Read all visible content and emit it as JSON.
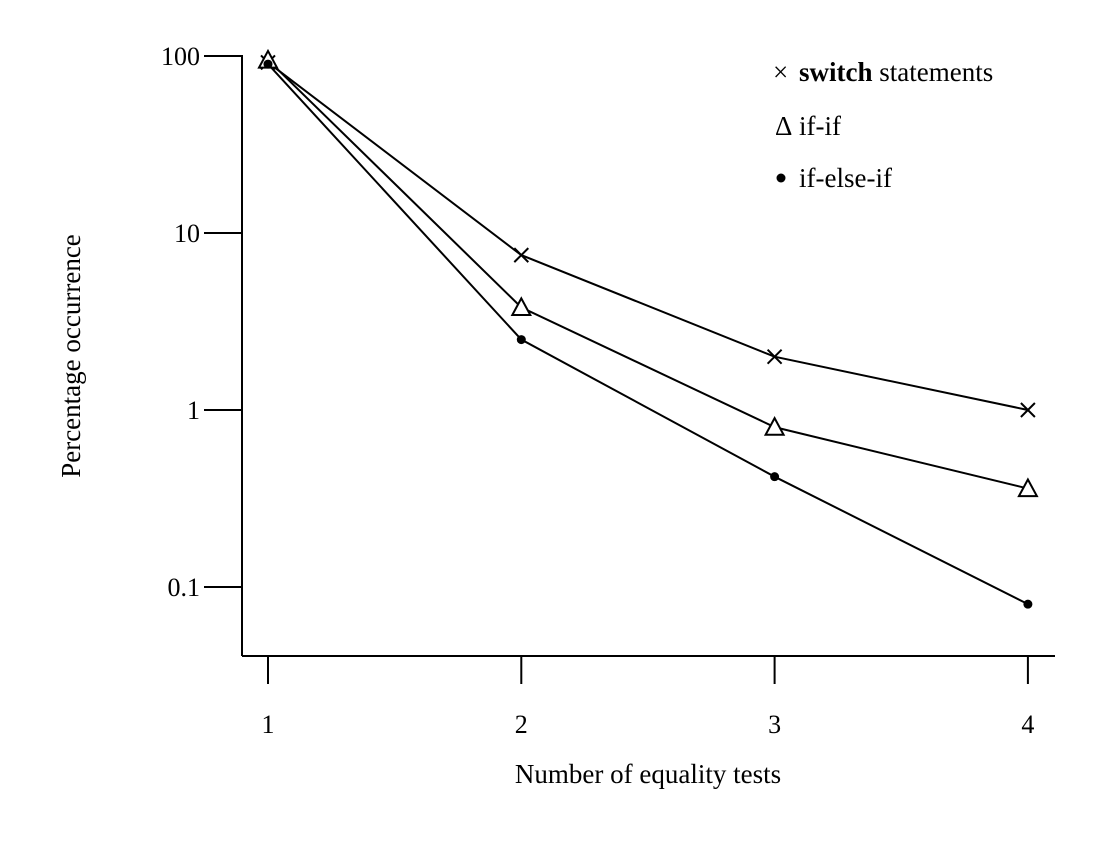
{
  "chart_data": {
    "type": "line",
    "title": "",
    "xlabel": "Number of equality tests",
    "ylabel": "Percentage occurrence",
    "y_scale": "log",
    "ylim": [
      0.04,
      100
    ],
    "xlim": [
      0.9,
      4.1
    ],
    "x_ticks": [
      1,
      2,
      3,
      4
    ],
    "x_tick_labels": [
      "1",
      "2",
      "3",
      "4"
    ],
    "y_ticks": [
      0.1,
      1,
      10,
      100
    ],
    "y_tick_labels": [
      "0.1",
      "1",
      "10",
      "100"
    ],
    "x": [
      1,
      2,
      3,
      4
    ],
    "legend_position": "top-right",
    "grid": false,
    "series": [
      {
        "name": "switch statements",
        "name_bold": "switch",
        "name_rest": " statements",
        "marker": "cross",
        "legend_symbol": "×",
        "values": [
          92,
          7.5,
          2.0,
          1.0
        ]
      },
      {
        "name": "if-if",
        "marker": "triangle",
        "legend_symbol": "Δ",
        "values": [
          95,
          3.8,
          0.8,
          0.36
        ]
      },
      {
        "name": "if-else-if",
        "marker": "dot",
        "legend_symbol": "•",
        "values": [
          90,
          2.5,
          0.42,
          0.08
        ]
      }
    ]
  }
}
